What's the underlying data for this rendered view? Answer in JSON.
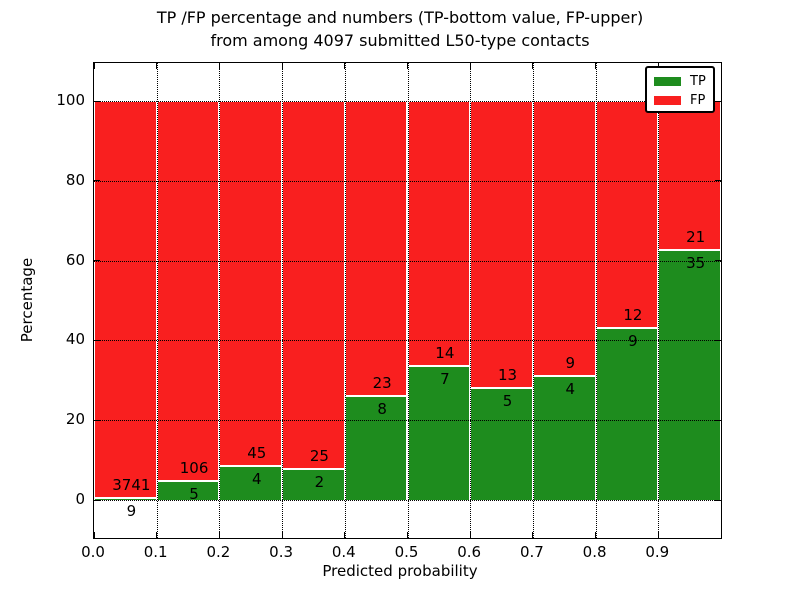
{
  "title": {
    "line1": "TP /FP percentage and numbers (TP-bottom value, FP-upper)",
    "line2": "from among 4097 submitted L50-type contacts"
  },
  "axes": {
    "xlabel": "Predicted probability",
    "ylabel": "Percentage",
    "x_tick_labels": [
      "0.0",
      "0.1",
      "0.2",
      "0.3",
      "0.4",
      "0.5",
      "0.6",
      "0.7",
      "0.8",
      "0.9"
    ],
    "y_tick_labels": [
      "0",
      "20",
      "40",
      "60",
      "80",
      "100"
    ],
    "y_tick_values": [
      0,
      20,
      40,
      60,
      80,
      100
    ]
  },
  "legend": {
    "items": [
      {
        "label": "TP",
        "color": "#1e8c1e"
      },
      {
        "label": "FP",
        "color": "#f91f1f"
      }
    ],
    "position": "upper right"
  },
  "chart_data": {
    "type": "bar",
    "stacked": true,
    "title": "TP /FP percentage and numbers (TP-bottom value, FP-upper) from among 4097 submitted L50-type contacts",
    "xlabel": "Predicted probability",
    "ylabel": "Percentage",
    "total_contacts": 4097,
    "categories": [
      "0.0-0.1",
      "0.1-0.2",
      "0.2-0.3",
      "0.3-0.4",
      "0.4-0.5",
      "0.5-0.6",
      "0.6-0.7",
      "0.7-0.8",
      "0.8-0.9",
      "0.9-1.0"
    ],
    "x_bin_edges": [
      0.0,
      0.1,
      0.2,
      0.3,
      0.4,
      0.5,
      0.6,
      0.7,
      0.8,
      0.9,
      1.0
    ],
    "series": [
      {
        "name": "TP",
        "color": "#1e8c1e",
        "counts": [
          9,
          5,
          4,
          2,
          8,
          7,
          5,
          4,
          9,
          35
        ],
        "percent": [
          0.24,
          4.5,
          8.16,
          7.41,
          25.81,
          33.33,
          27.78,
          30.77,
          42.86,
          62.5
        ]
      },
      {
        "name": "FP",
        "color": "#f91f1f",
        "counts": [
          3741,
          106,
          45,
          25,
          23,
          14,
          13,
          9,
          12,
          21
        ],
        "percent": [
          99.76,
          95.5,
          91.84,
          92.59,
          74.19,
          66.67,
          72.22,
          69.23,
          57.14,
          37.5
        ]
      }
    ],
    "ylim": [
      0,
      100
    ],
    "xlim": [
      0.0,
      1.0
    ],
    "grid": true,
    "gridstyle": "dotted",
    "legend_position": "upper right"
  }
}
